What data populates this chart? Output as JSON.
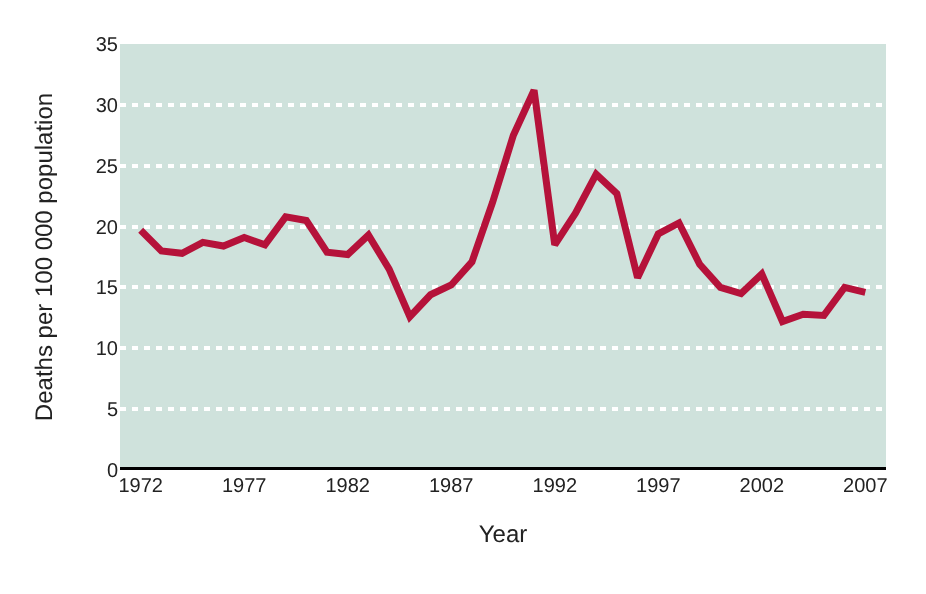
{
  "chart_data": {
    "type": "line",
    "xlabel": "Year",
    "ylabel": "Deaths per 100 000 population",
    "x": [
      1972,
      1973,
      1974,
      1975,
      1976,
      1977,
      1978,
      1979,
      1980,
      1981,
      1982,
      1983,
      1984,
      1985,
      1986,
      1987,
      1988,
      1989,
      1990,
      1991,
      1992,
      1993,
      1994,
      1995,
      1996,
      1997,
      1998,
      1999,
      2000,
      2001,
      2002,
      2003,
      2004,
      2005,
      2006,
      2007
    ],
    "series": [
      {
        "color": "#b5123a",
        "values": [
          19.7,
          18.0,
          17.8,
          18.7,
          18.4,
          19.1,
          18.5,
          20.8,
          20.5,
          17.9,
          17.7,
          19.3,
          16.5,
          12.6,
          14.4,
          15.2,
          17.1,
          22.0,
          27.5,
          31.2,
          18.5,
          21.1,
          24.3,
          22.7,
          15.8,
          19.4,
          20.3,
          16.9,
          15.0,
          14.5,
          16.1,
          12.2,
          12.8,
          12.7,
          15.0,
          14.6
        ]
      }
    ],
    "xlim": [
      1971,
      2008
    ],
    "xticks": [
      1972,
      1977,
      1982,
      1987,
      1992,
      1997,
      2002,
      2007
    ],
    "ylim": [
      0,
      35
    ],
    "yticks": [
      0,
      5,
      10,
      15,
      20,
      25,
      30,
      35
    ],
    "grid": "y",
    "marker": "none",
    "line_style": "solid"
  }
}
